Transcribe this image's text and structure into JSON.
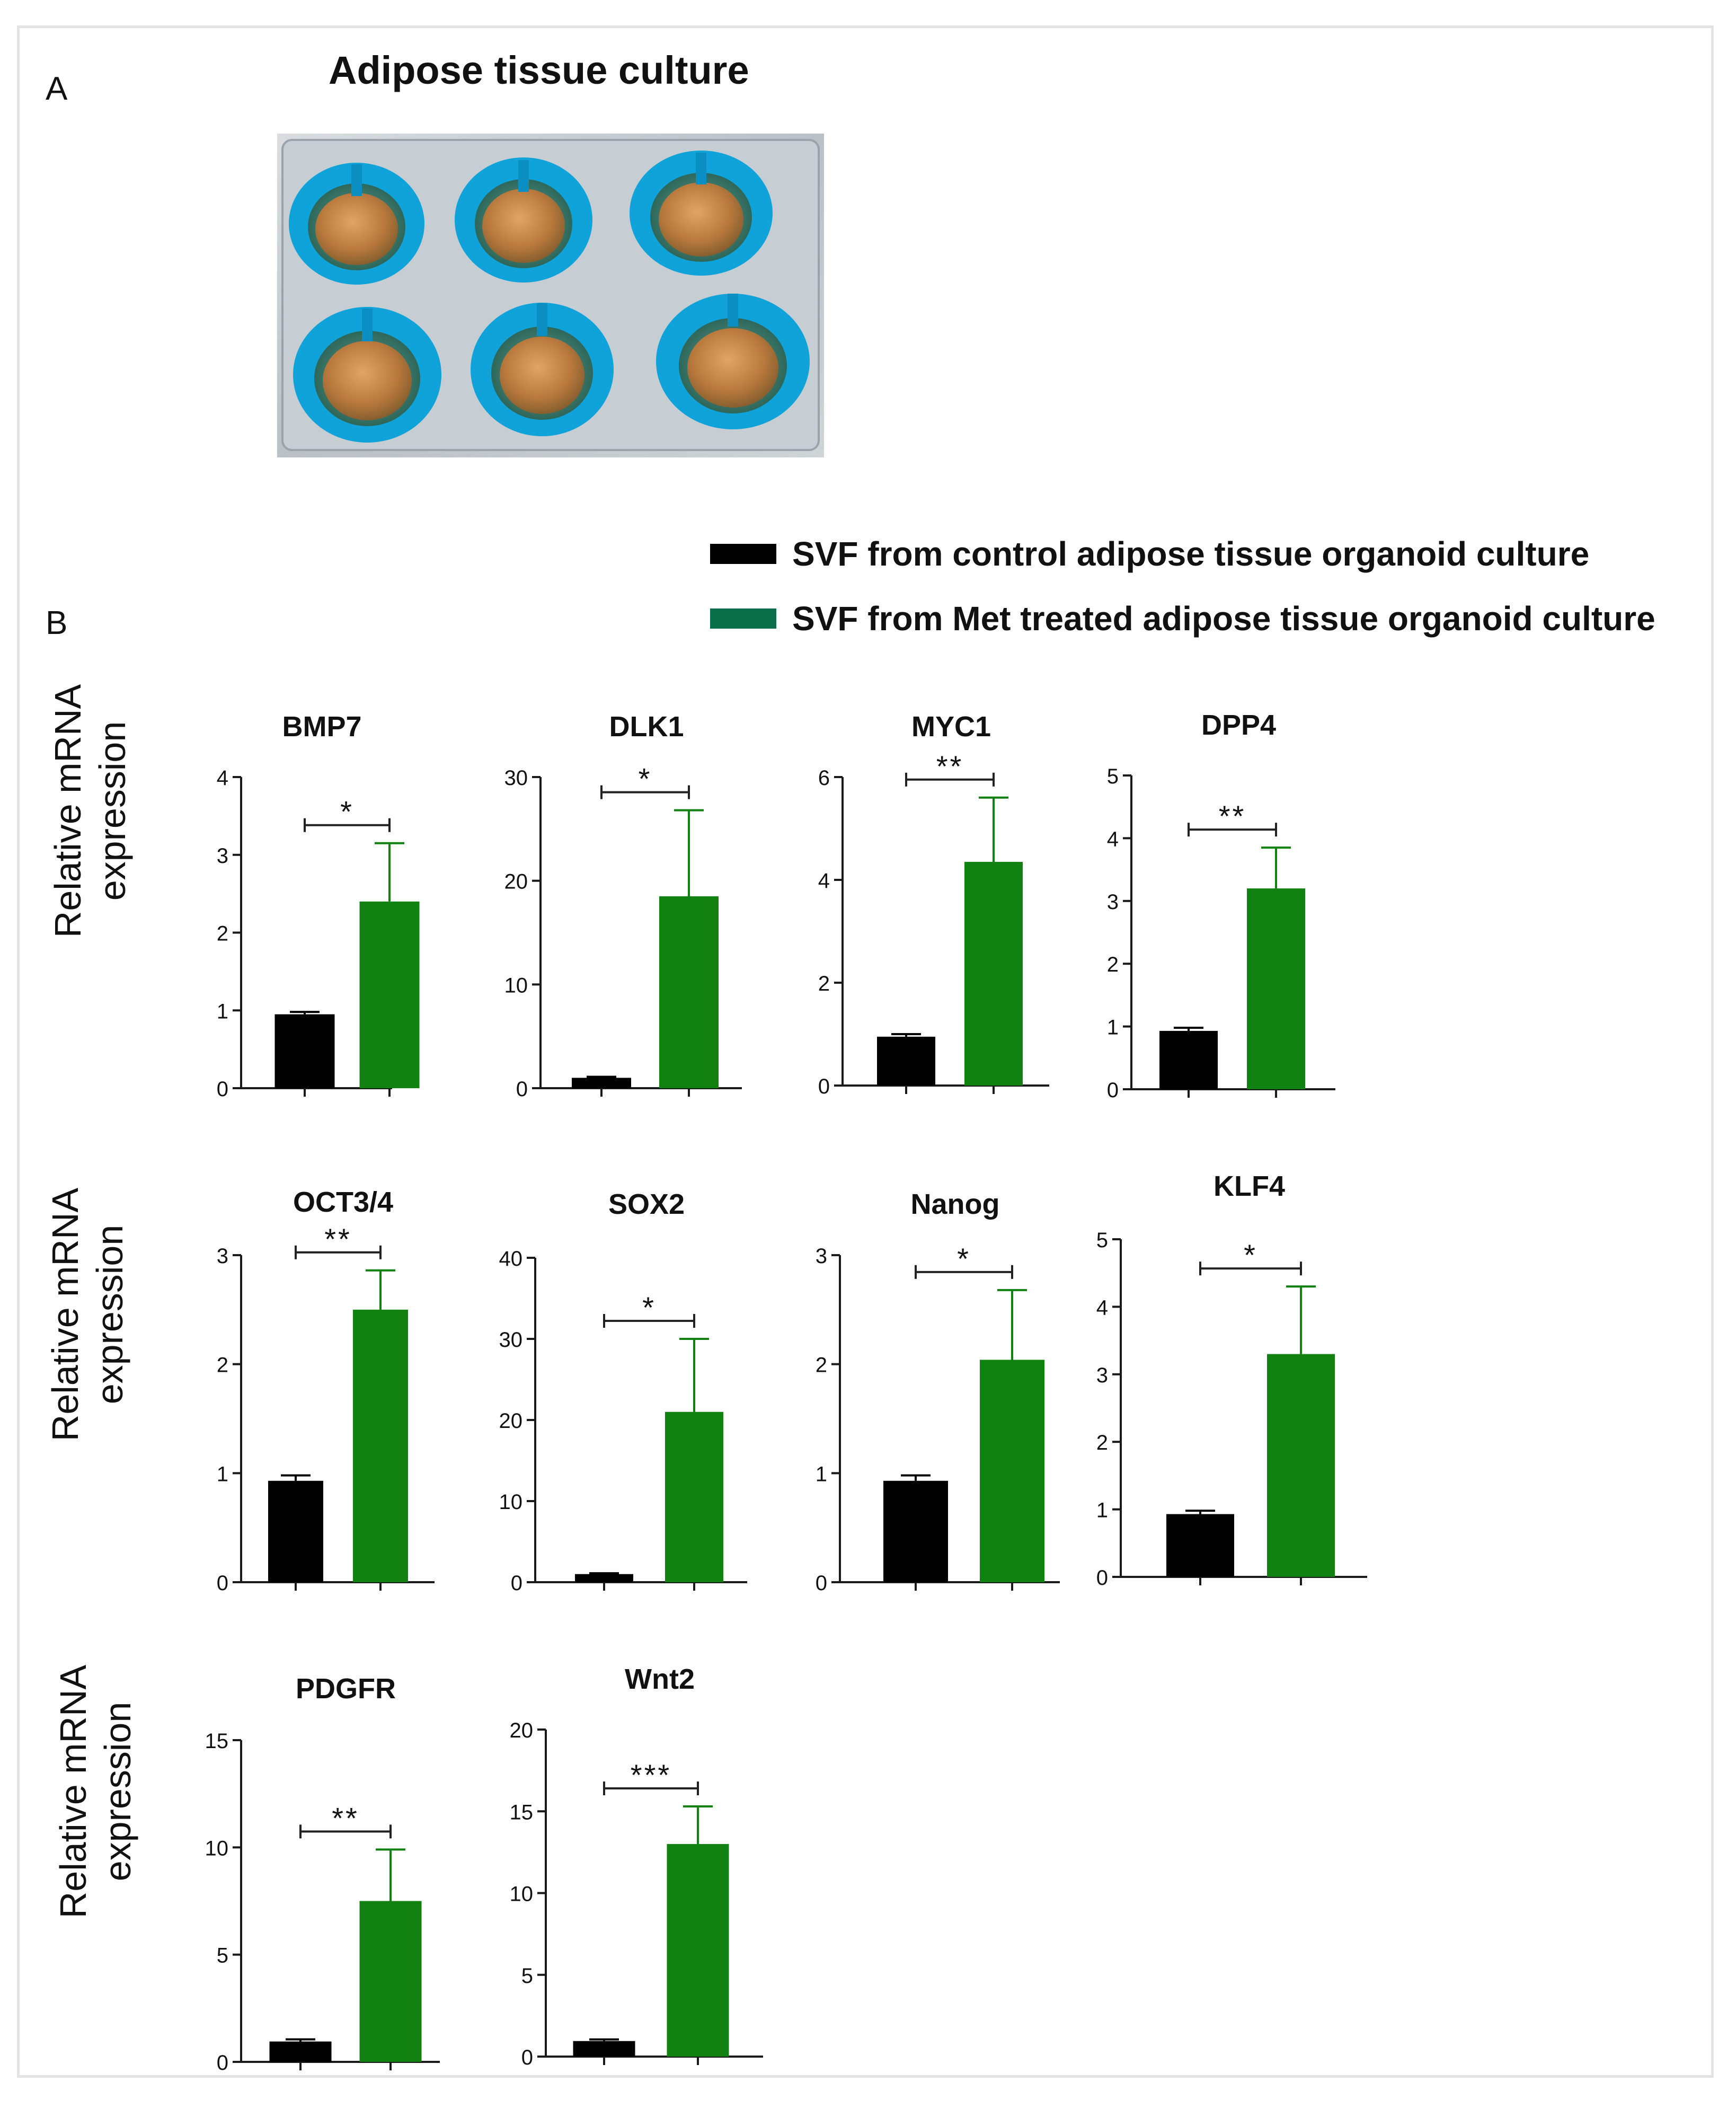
{
  "figure": {
    "panel_a_label": "A",
    "panel_b_label": "B",
    "photo_title": "Adipose tissue culture",
    "y_axis_label_line1": "Relative mRNA",
    "y_axis_label_line2": "expression",
    "legend": [
      {
        "label": "SVF from control adipose tissue organoid culture",
        "color": "#000000"
      },
      {
        "label": "SVF from Met treated adipose tissue organoid culture",
        "color": "#0a6e4b"
      }
    ]
  },
  "colors": {
    "control": "#000000",
    "met": "#118211",
    "axis": "#1a1a1a"
  },
  "chart_data": [
    {
      "type": "bar",
      "title": "BMP7",
      "categories": [
        "control",
        "Met"
      ],
      "values": [
        0.95,
        2.4
      ],
      "errors": [
        0.03,
        0.75
      ],
      "ylim": [
        0,
        4
      ],
      "yticks": [
        "0",
        "1",
        "2",
        "3",
        "4"
      ],
      "significance": "*"
    },
    {
      "type": "bar",
      "title": "DLK1",
      "categories": [
        "control",
        "Met"
      ],
      "values": [
        1.0,
        18.5
      ],
      "errors": [
        0.1,
        8.3
      ],
      "ylim": [
        0,
        30
      ],
      "yticks": [
        "0",
        "10",
        "20",
        "30"
      ],
      "significance": "*"
    },
    {
      "type": "bar",
      "title": "MYC1",
      "categories": [
        "control",
        "Met"
      ],
      "values": [
        0.95,
        4.35
      ],
      "errors": [
        0.05,
        1.25
      ],
      "ylim": [
        0,
        6
      ],
      "yticks": [
        "0",
        "2",
        "4",
        "6"
      ],
      "significance": "**"
    },
    {
      "type": "bar",
      "title": "DPP4",
      "categories": [
        "control",
        "Met"
      ],
      "values": [
        0.93,
        3.2
      ],
      "errors": [
        0.05,
        0.65
      ],
      "ylim": [
        0,
        5
      ],
      "yticks": [
        "0",
        "1",
        "2",
        "3",
        "4",
        "5"
      ],
      "significance": "**"
    },
    {
      "type": "bar",
      "title": "OCT3/4",
      "categories": [
        "control",
        "Met"
      ],
      "values": [
        0.93,
        2.5
      ],
      "errors": [
        0.05,
        0.36
      ],
      "ylim": [
        0,
        3
      ],
      "yticks": [
        "0",
        "1",
        "2",
        "3"
      ],
      "significance": "**"
    },
    {
      "type": "bar",
      "title": "SOX2",
      "categories": [
        "control",
        "Met"
      ],
      "values": [
        1.0,
        21.0
      ],
      "errors": [
        0.1,
        9.0
      ],
      "ylim": [
        0,
        40
      ],
      "yticks": [
        "0",
        "10",
        "20",
        "30",
        "40"
      ],
      "significance": "*"
    },
    {
      "type": "bar",
      "title": "Nanog",
      "categories": [
        "control",
        "Met"
      ],
      "values": [
        0.93,
        2.04
      ],
      "errors": [
        0.05,
        0.64
      ],
      "ylim": [
        0,
        3
      ],
      "yticks": [
        "0",
        "1",
        "2",
        "3"
      ],
      "significance": "*"
    },
    {
      "type": "bar",
      "title": "KLF4",
      "categories": [
        "control",
        "Met"
      ],
      "values": [
        0.93,
        3.3
      ],
      "errors": [
        0.05,
        1.0
      ],
      "ylim": [
        0,
        5
      ],
      "yticks": [
        "0",
        "1",
        "2",
        "3",
        "4",
        "5"
      ],
      "significance": "*"
    },
    {
      "type": "bar",
      "title": "PDGFR",
      "categories": [
        "control",
        "Met"
      ],
      "values": [
        0.95,
        7.5
      ],
      "errors": [
        0.1,
        2.4
      ],
      "ylim": [
        0,
        15
      ],
      "yticks": [
        "0",
        "5",
        "10",
        "15"
      ],
      "significance": "**"
    },
    {
      "type": "bar",
      "title": "Wnt2",
      "categories": [
        "control",
        "Met"
      ],
      "values": [
        0.95,
        13.0
      ],
      "errors": [
        0.1,
        2.3
      ],
      "ylim": [
        0,
        20
      ],
      "yticks": [
        "0",
        "5",
        "10",
        "15",
        "20"
      ],
      "significance": "***"
    }
  ]
}
